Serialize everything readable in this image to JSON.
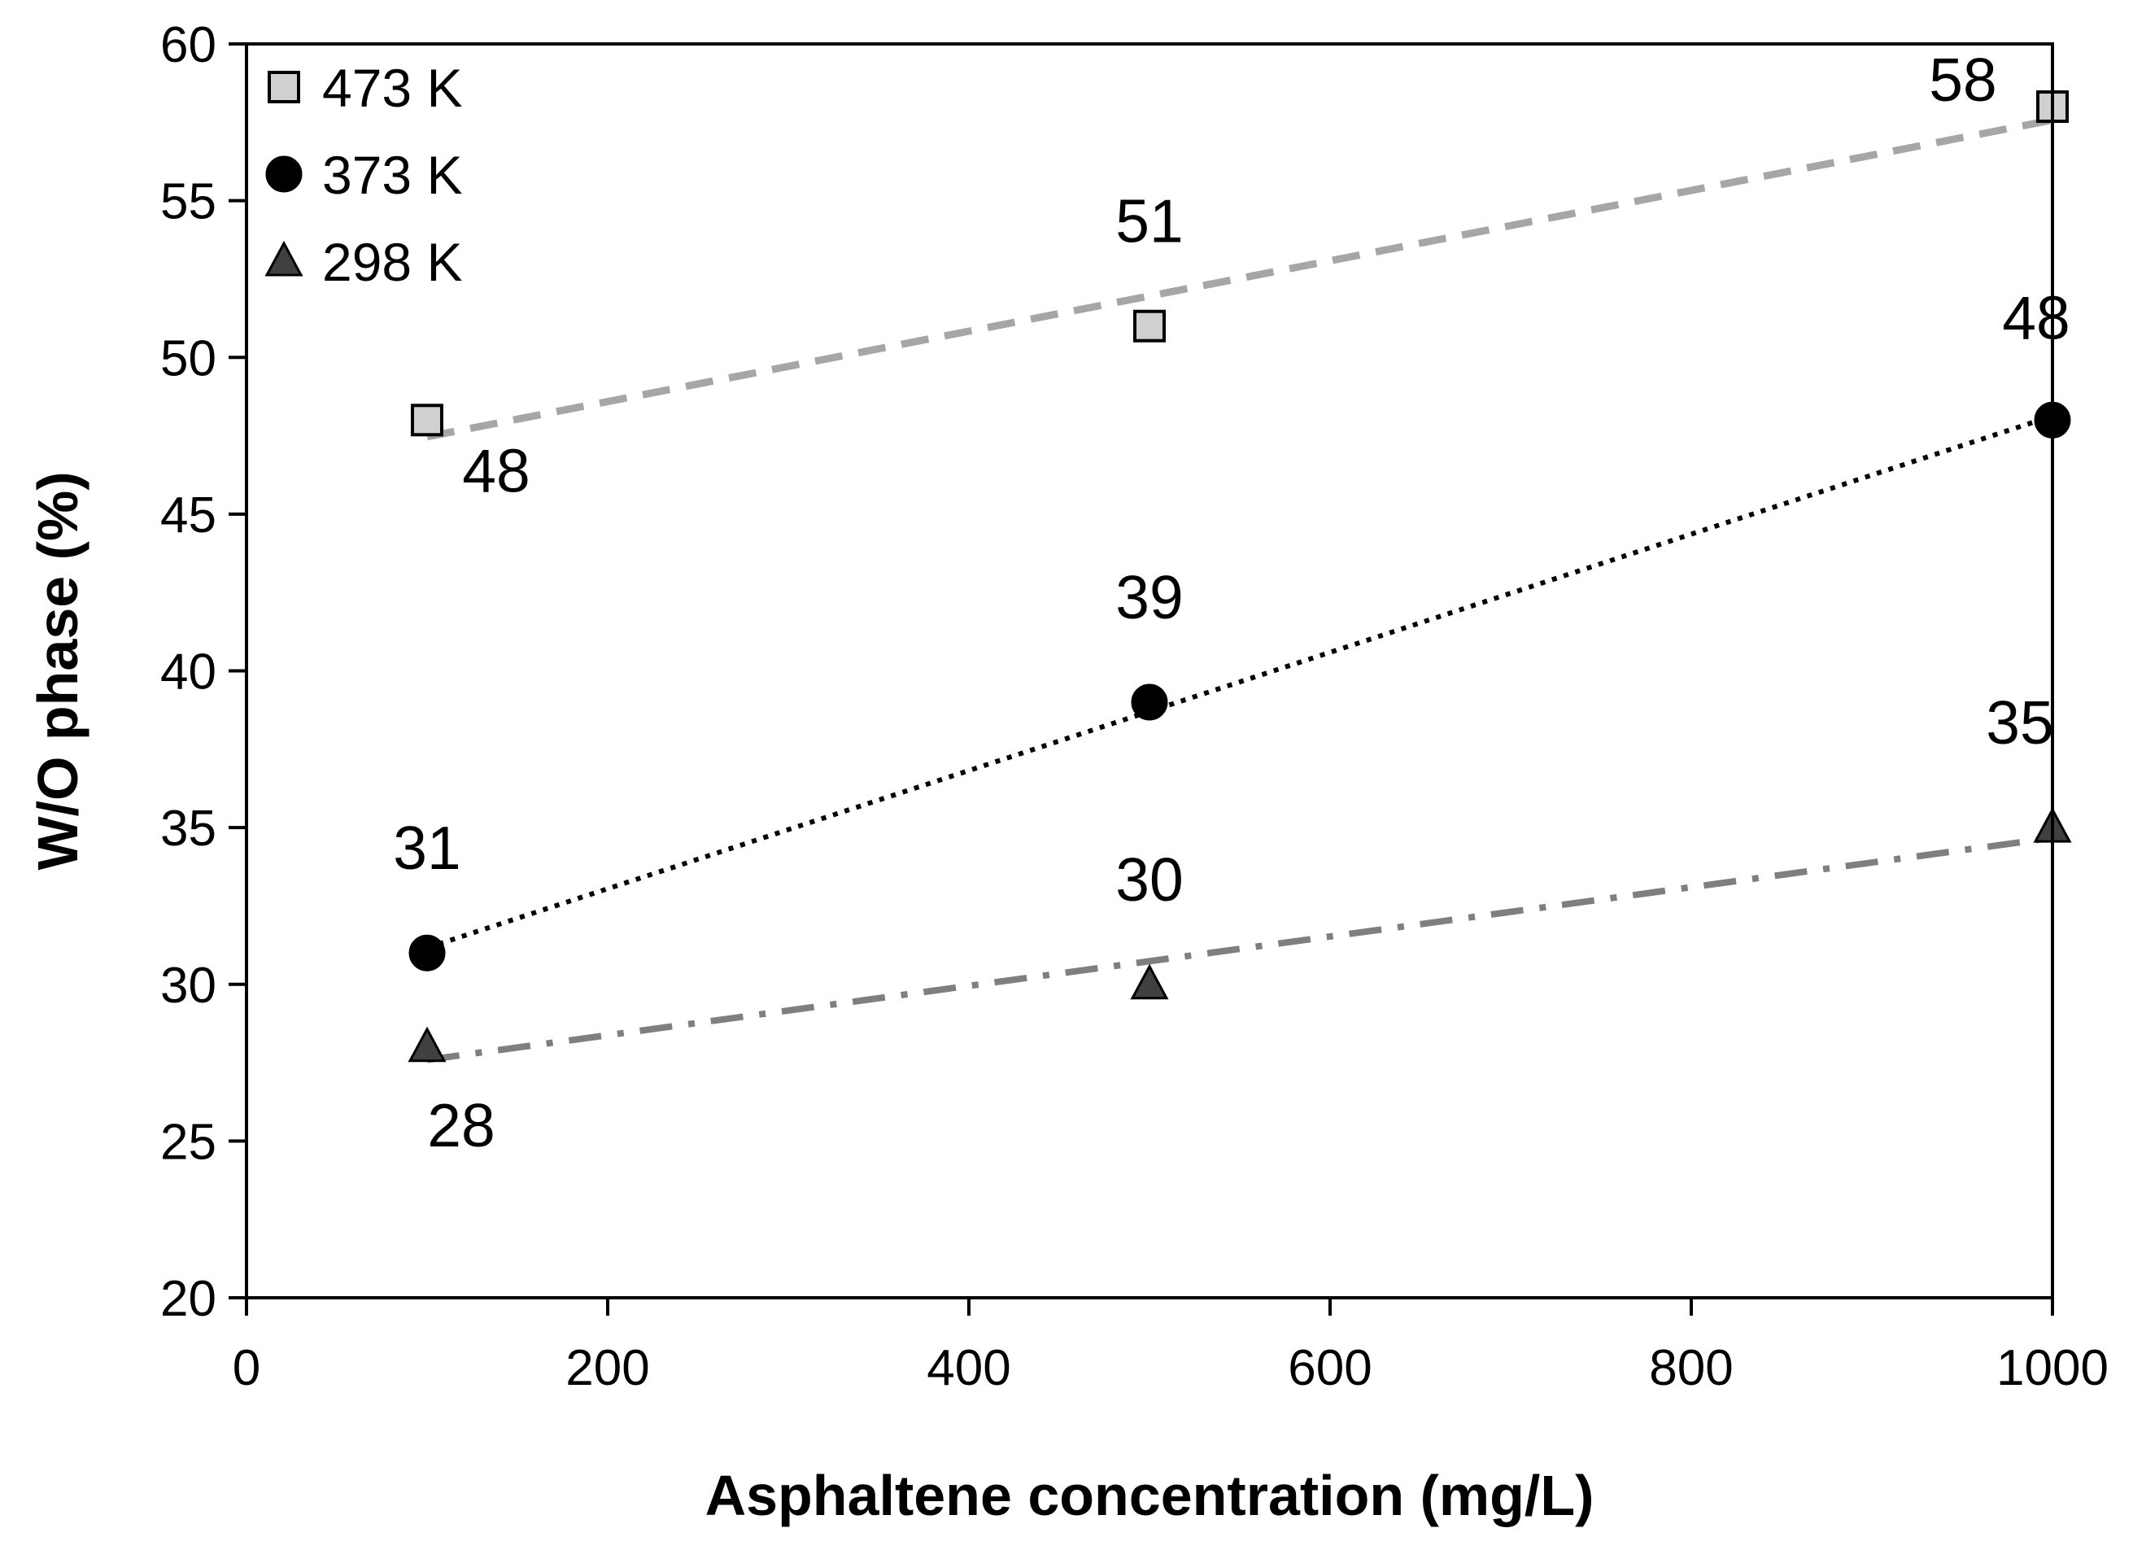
{
  "chart_data": {
    "type": "scatter",
    "xlabel": "Asphaltene concentration (mg/L)",
    "ylabel": "W/O phase (%)",
    "xlim": [
      0,
      1000
    ],
    "ylim": [
      20,
      60
    ],
    "xticks": [
      0,
      200,
      400,
      600,
      800,
      1000
    ],
    "yticks": [
      20,
      25,
      30,
      35,
      40,
      45,
      50,
      55,
      60
    ],
    "grid": false,
    "legend_position": "top-left",
    "series": [
      {
        "name": "473 K",
        "marker": "square",
        "marker_fill": "#d0d0d0",
        "trendline": "dashed",
        "trend_color": "#a6a6a6",
        "x": [
          100,
          500,
          1000
        ],
        "y": [
          48,
          51,
          58
        ],
        "labels": [
          "48",
          "51",
          "58"
        ]
      },
      {
        "name": "373 K",
        "marker": "circle",
        "marker_fill": "#000000",
        "trendline": "dotted",
        "trend_color": "#000000",
        "x": [
          100,
          500,
          1000
        ],
        "y": [
          31,
          39,
          48
        ],
        "labels": [
          "31",
          "39",
          "48"
        ]
      },
      {
        "name": "298 K",
        "marker": "triangle",
        "marker_fill": "#404040",
        "trendline": "dash-dot",
        "trend_color": "#7f7f7f",
        "x": [
          100,
          500,
          1000
        ],
        "y": [
          28,
          30,
          35
        ],
        "labels": [
          "28",
          "30",
          "35"
        ]
      }
    ]
  }
}
